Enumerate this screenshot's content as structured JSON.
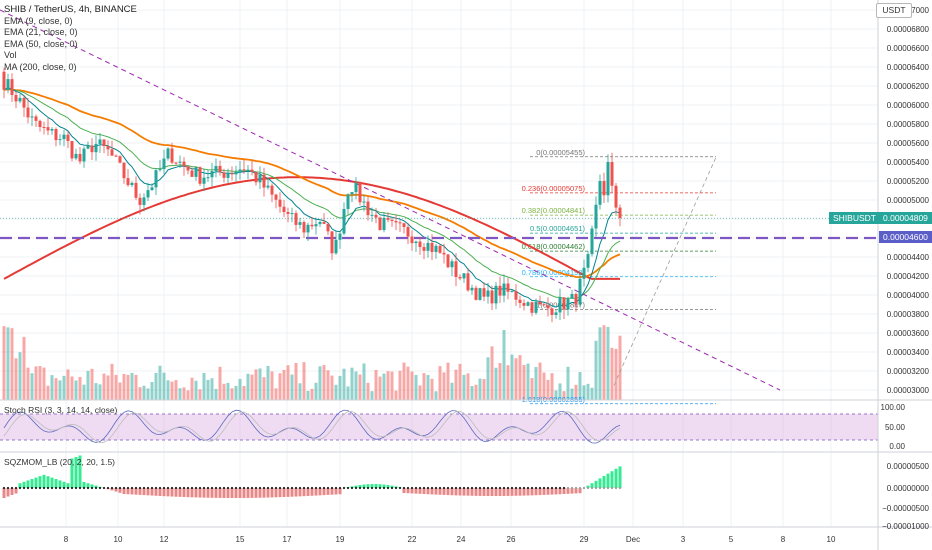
{
  "header": {
    "symbol": "SHIB / TetherUS, 4h, BINANCE",
    "ema9": "EMA (9, close, 0)",
    "ema21": "EMA (21, close, 0)",
    "ema50": "EMA (50, close, 0)",
    "vol": "Vol",
    "ma200": "MA (200, close, 0)"
  },
  "currency": "USDT",
  "price_axis": [
    "0.00007000",
    "0.00006800",
    "0.00006600",
    "0.00006400",
    "0.00006200",
    "0.00006000",
    "0.00005800",
    "0.00005600",
    "0.00005400",
    "0.00005200",
    "0.00005000",
    "0.00004800",
    "0.00004600",
    "0.00004400",
    "0.00004200",
    "0.00004000",
    "0.00003800",
    "0.00003600",
    "0.00003400",
    "0.00003200",
    "0.00003000"
  ],
  "date_axis": [
    "8",
    "10",
    "12",
    "15",
    "17",
    "19",
    "22",
    "24",
    "26",
    "29",
    "Dec",
    "3",
    "5",
    "8",
    "10"
  ],
  "tags": {
    "symbol": "SHIBUSDT",
    "last_price": "0.00004809",
    "line_price": "0.00004600"
  },
  "colors": {
    "up": "#26a69a",
    "down": "#ef5350",
    "ma200": "#e53935",
    "ema50": "#f57c00",
    "ema21": "#4caf50",
    "ema9": "#00838f",
    "trendline": "#9c27b0",
    "hline": "#7e57c2",
    "tag_blue": "#5b5ec7",
    "tag_teal": "#26a69a"
  },
  "fib": [
    {
      "label": "0(0.00005455)",
      "value": 5.455e-05,
      "color": "#777777"
    },
    {
      "label": "0.236(0.00005075)",
      "value": 5.075e-05,
      "color": "#e53935"
    },
    {
      "label": "0.382(0.00004841)",
      "value": 4.841e-05,
      "color": "#7cb342"
    },
    {
      "label": "0.5(0.00004651)",
      "value": 4.651e-05,
      "color": "#26a69a"
    },
    {
      "label": "0.618(0.00004462)",
      "value": 4.462e-05,
      "color": "#2e7d32"
    },
    {
      "label": "0.786(0.00004192)",
      "value": 4.192e-05,
      "color": "#29b6f6"
    },
    {
      "label": "1(0.00003847)",
      "value": 3.847e-05,
      "color": "#777777"
    },
    {
      "label": "1.618(0.00002855)",
      "value": 2.855e-05,
      "color": "#2196f3"
    }
  ],
  "stoch": {
    "label": "Stoch RSI (3, 3, 14, 14, close)",
    "axis": [
      "100.00",
      "50.00",
      "0.00"
    ]
  },
  "sqz": {
    "label": "SQZMOM_LB (20, 2, 20, 1.5)",
    "axis": [
      "0.00000500",
      "0.00000000",
      "−0.00000500",
      "−0.00001000"
    ]
  },
  "chart_data": {
    "type": "candlestick",
    "title": "SHIB / TetherUS, 4h, BINANCE",
    "ylim": [
      2.9e-05,
      7.1e-05
    ],
    "x": [
      "8",
      "10",
      "12",
      "15",
      "17",
      "19",
      "22",
      "24",
      "26",
      "29",
      "Dec",
      "3",
      "5",
      "8",
      "10"
    ],
    "series": [
      {
        "name": "EMA (9, close, 0)"
      },
      {
        "name": "EMA (21, close, 0)"
      },
      {
        "name": "EMA (50, close, 0)"
      },
      {
        "name": "MA (200, close, 0)"
      },
      {
        "name": "Vol"
      }
    ],
    "horizontal_line": 4.6e-05,
    "last_price": 4.809e-05,
    "close_key": [
      6.25e-05,
      6.05e-05,
      5.8e-05,
      5.7e-05,
      5.65e-05,
      5.4e-05,
      5.6e-05,
      5.5e-05,
      5.25e-05,
      5e-05,
      5.2e-05,
      5.5e-05,
      5.35e-05,
      5.25e-05,
      5.28e-05,
      5.3e-05,
      5.35e-05,
      5.2e-05,
      5e-05,
      4.8e-05,
      4.7e-05,
      4.8e-05,
      4.45e-05,
      5.2e-05,
      4.95e-05,
      4.75e-05,
      4.7e-05,
      4.65e-05,
      4.55e-05,
      4.45e-05,
      4.25e-05,
      4.1e-05,
      3.95e-05,
      4.05e-05,
      4e-05,
      3.9e-05,
      3.85e-05,
      3.9e-05,
      3.95e-05,
      4.4e-05,
      5.25e-05,
      4.85e-05
    ]
  }
}
